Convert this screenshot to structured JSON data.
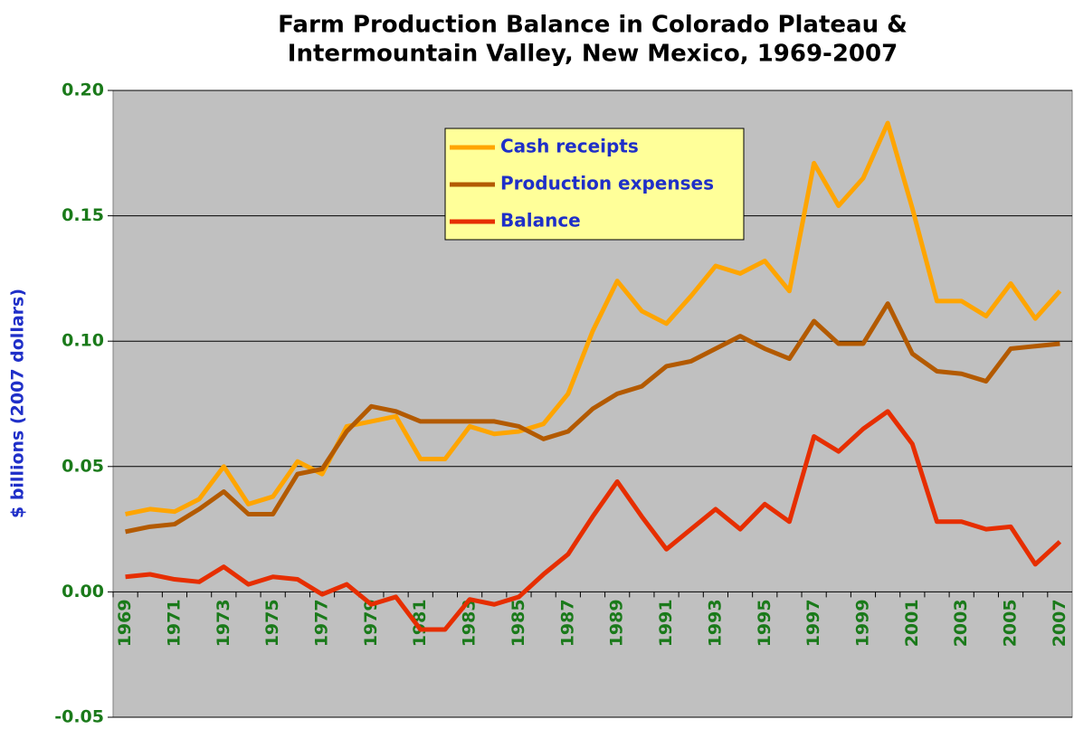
{
  "chart_data": {
    "type": "line",
    "title": [
      "Farm Production Balance in Colorado Plateau &",
      "Intermountain Valley, New Mexico, 1969-2007"
    ],
    "y_label": "$ billions (2007 dollars)",
    "categories": [
      "1969",
      null,
      "1971",
      null,
      "1973",
      null,
      "1975",
      null,
      "1977",
      null,
      "1979",
      null,
      "1981",
      null,
      "1983",
      null,
      "1985",
      null,
      "1987",
      null,
      "1989",
      null,
      "1991",
      null,
      "1993",
      null,
      "1995",
      null,
      "1997",
      null,
      "1999",
      null,
      "2001",
      null,
      "2003",
      null,
      "2005",
      null,
      "2007"
    ],
    "series": [
      {
        "name": "Cash receipts",
        "color": "#ffa500",
        "values": [
          0.031,
          0.033,
          0.032,
          0.037,
          0.05,
          0.035,
          0.038,
          0.052,
          0.047,
          0.066,
          0.068,
          0.07,
          0.053,
          0.053,
          0.066,
          0.063,
          0.064,
          0.067,
          0.079,
          0.104,
          0.124,
          0.112,
          0.107,
          0.118,
          0.13,
          0.127,
          0.132,
          0.12,
          0.171,
          0.154,
          0.165,
          0.187,
          0.153,
          0.116,
          0.116,
          0.11,
          0.123,
          0.109,
          0.12
        ]
      },
      {
        "name": "Production expenses",
        "color": "#b35a00",
        "values": [
          0.024,
          0.026,
          0.027,
          0.033,
          0.04,
          0.031,
          0.031,
          0.047,
          0.049,
          0.064,
          0.074,
          0.072,
          0.068,
          0.068,
          0.068,
          0.068,
          0.066,
          0.061,
          0.064,
          0.073,
          0.079,
          0.082,
          0.09,
          0.092,
          0.097,
          0.102,
          0.097,
          0.093,
          0.108,
          0.099,
          0.099,
          0.115,
          0.095,
          0.088,
          0.087,
          0.084,
          0.097,
          0.098,
          0.099
        ]
      },
      {
        "name": "Balance",
        "color": "#e62e00",
        "values": [
          0.006,
          0.007,
          0.005,
          0.004,
          0.01,
          0.003,
          0.006,
          0.005,
          -0.001,
          0.003,
          -0.005,
          -0.002,
          -0.015,
          -0.015,
          -0.003,
          -0.005,
          -0.002,
          0.007,
          0.015,
          0.03,
          0.044,
          0.03,
          0.017,
          0.025,
          0.033,
          0.025,
          0.035,
          0.028,
          0.062,
          0.056,
          0.065,
          0.072,
          0.059,
          0.028,
          0.028,
          0.025,
          0.026,
          0.011,
          0.02
        ]
      }
    ],
    "ylim": [
      -0.05,
      0.2
    ],
    "yticks": [
      {
        "value": 0.2,
        "label": "0.20"
      },
      0.15,
      {
        "value": 0.1,
        "label": "0.10"
      },
      0.05,
      {
        "value": 0,
        "label": "0.00"
      },
      -0.05
    ],
    "grid": true
  }
}
